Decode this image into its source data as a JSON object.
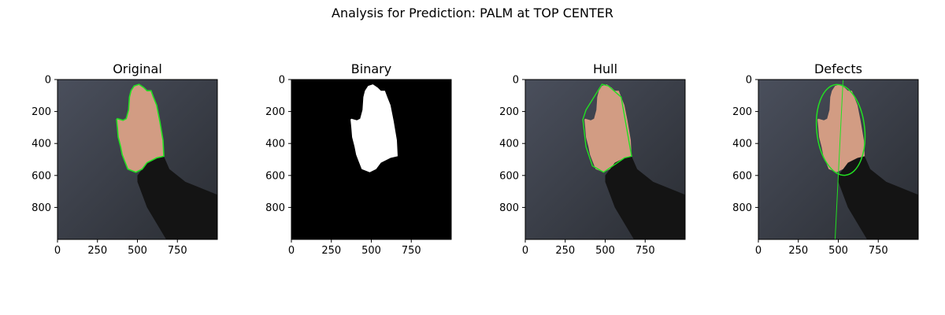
{
  "figure": {
    "suptitle": "Analysis for Prediction: PALM at TOP CENTER"
  },
  "colors": {
    "contour": "#22e022",
    "background_top": "#4a4f5c",
    "background_bottom": "#2a2d33",
    "skin": "#d29c83",
    "sleeve": "#141414",
    "defect_fill": "#6b1a1a"
  },
  "chart_data": [
    {
      "type": "image",
      "title": "Original",
      "xlim": [
        0,
        1000
      ],
      "ylim": [
        1000,
        0
      ],
      "xticks": [
        0,
        250,
        500,
        750
      ],
      "yticks": [
        0,
        200,
        400,
        600,
        800
      ],
      "overlay": "contour"
    },
    {
      "type": "image",
      "title": "Binary",
      "xlim": [
        0,
        1000
      ],
      "ylim": [
        1000,
        0
      ],
      "xticks": [
        0,
        250,
        500,
        750
      ],
      "yticks": [
        0,
        200,
        400,
        600,
        800
      ],
      "overlay": "mask"
    },
    {
      "type": "image",
      "title": "Hull",
      "xlim": [
        0,
        1000
      ],
      "ylim": [
        1000,
        0
      ],
      "xticks": [
        0,
        250,
        500,
        750
      ],
      "yticks": [
        0,
        200,
        400,
        600,
        800
      ],
      "overlay": "hull"
    },
    {
      "type": "image",
      "title": "Defects",
      "xlim": [
        0,
        1000
      ],
      "ylim": [
        1000,
        0
      ],
      "xticks": [
        0,
        250,
        500,
        750
      ],
      "yticks": [
        0,
        200,
        400,
        600,
        800
      ],
      "overlay": "ellipse",
      "ellipse": {
        "cx": 515,
        "cy": 315,
        "rx": 150,
        "ry": 285,
        "angle_deg": -6
      },
      "axis_line": [
        [
          530,
          0
        ],
        [
          480,
          1000
        ]
      ]
    }
  ],
  "hand_outline": [
    [
      480,
      40
    ],
    [
      510,
      30
    ],
    [
      540,
      50
    ],
    [
      560,
      70
    ],
    [
      585,
      70
    ],
    [
      600,
      110
    ],
    [
      620,
      160
    ],
    [
      640,
      260
    ],
    [
      660,
      380
    ],
    [
      665,
      480
    ],
    [
      620,
      490
    ],
    [
      560,
      520
    ],
    [
      530,
      560
    ],
    [
      490,
      580
    ],
    [
      440,
      560
    ],
    [
      420,
      510
    ],
    [
      405,
      470
    ],
    [
      395,
      420
    ],
    [
      380,
      360
    ],
    [
      375,
      300
    ],
    [
      370,
      250
    ],
    [
      375,
      245
    ],
    [
      410,
      255
    ],
    [
      430,
      245
    ],
    [
      445,
      190
    ],
    [
      450,
      110
    ],
    [
      460,
      70
    ]
  ],
  "hull_outline": [
    [
      480,
      30
    ],
    [
      520,
      40
    ],
    [
      600,
      110
    ],
    [
      665,
      480
    ],
    [
      620,
      490
    ],
    [
      490,
      580
    ],
    [
      420,
      540
    ],
    [
      380,
      420
    ],
    [
      360,
      250
    ],
    [
      380,
      190
    ]
  ],
  "sleeve": [
    [
      500,
      600
    ],
    [
      560,
      520
    ],
    [
      620,
      490
    ],
    [
      665,
      480
    ],
    [
      700,
      560
    ],
    [
      800,
      640
    ],
    [
      1000,
      720
    ],
    [
      1000,
      1000
    ],
    [
      680,
      1000
    ],
    [
      560,
      800
    ],
    [
      500,
      640
    ]
  ]
}
